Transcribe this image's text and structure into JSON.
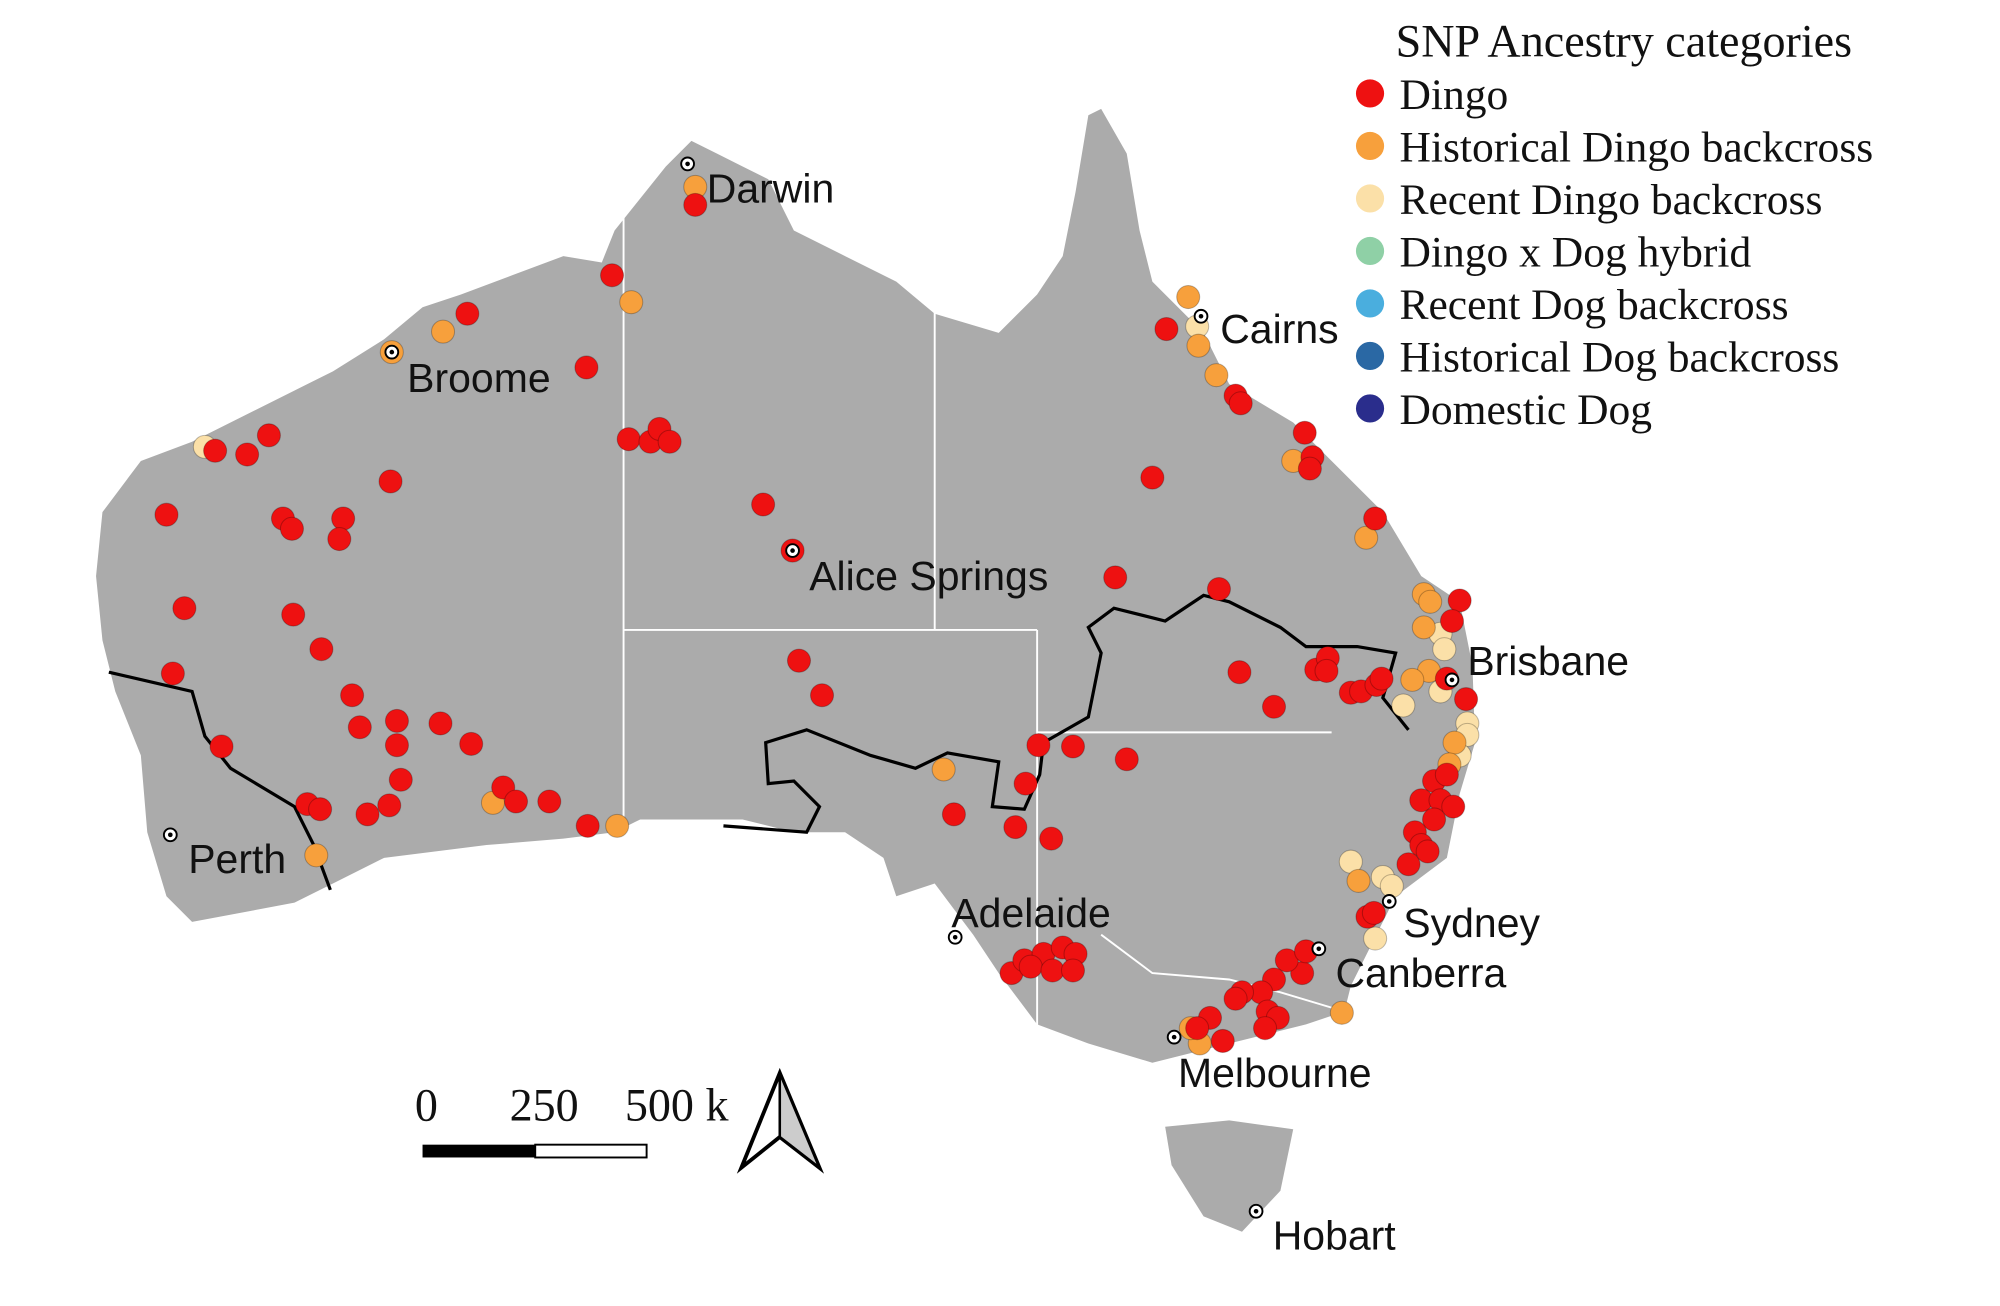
{
  "legend": {
    "title": "SNP Ancestry categories",
    "items": [
      {
        "label": "Dingo",
        "color": "#ee1111"
      },
      {
        "label": "Historical Dingo backcross",
        "color": "#f7a03c"
      },
      {
        "label": "Recent Dingo backcross",
        "color": "#fbe0a8"
      },
      {
        "label": "Dingo x Dog hybrid",
        "color": "#8fd0a6"
      },
      {
        "label": "Recent Dog backcross",
        "color": "#4aaede"
      },
      {
        "label": "Historical Dog backcross",
        "color": "#2a68a4"
      },
      {
        "label": "Domestic Dog",
        "color": "#2a2d8c"
      }
    ]
  },
  "cities": [
    "Darwin",
    "Cairns",
    "Broome",
    "Alice Springs",
    "Brisbane",
    "Perth",
    "Adelaide",
    "Sydney",
    "Canberra",
    "Melbourne",
    "Hobart"
  ],
  "scale_bar": {
    "labels": [
      "0",
      "250",
      "500 k"
    ]
  }
}
